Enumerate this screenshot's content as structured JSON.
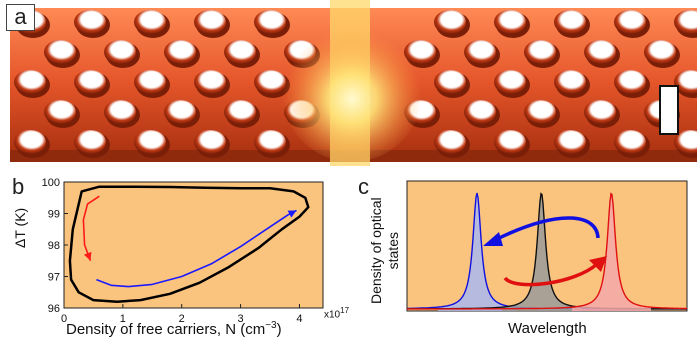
{
  "panel_a": {
    "label": "a",
    "colors": {
      "slab": "#e4552a",
      "slab_dark": "#9c2a10",
      "holes": "#ffffff",
      "glow": "#fff3a8"
    }
  },
  "panel_b": {
    "label": "b",
    "ylabel": "ΔT (K)",
    "xlabel": "Density of free carriers, N (cm",
    "xlabel_exp": "−3",
    "xlabel_close": ")",
    "x_multiplier": "x10",
    "x_multiplier_exp": "17",
    "background": "#fbc47e",
    "x_ticks": [
      "0",
      "1",
      "2",
      "3",
      "4"
    ],
    "y_ticks": [
      "96",
      "97",
      "98",
      "99",
      "100"
    ]
  },
  "panel_c": {
    "label": "c",
    "ylabel_line1": "Density of optical",
    "ylabel_line2": "states",
    "xlabel": "Wavelength",
    "background": "#fbc47e",
    "colors": {
      "blue": "#1010e0",
      "black": "#111111",
      "red": "#e01010"
    }
  },
  "chart_data": [
    {
      "type": "line",
      "title": "",
      "xlabel": "Density of free carriers, N (cm−3)",
      "ylabel": "ΔT (K)",
      "xlim": [
        0,
        4.4
      ],
      "ylim": [
        96,
        100
      ],
      "x_scale_note": "x10^17",
      "series": [
        {
          "color": "#000000",
          "x": [
            0.15,
            0.1,
            0.12,
            0.25,
            0.5,
            0.9,
            1.3,
            1.8,
            2.3,
            2.8,
            3.3,
            3.7,
            4.0,
            4.15,
            4.1,
            3.9,
            3.5,
            3.0,
            2.4,
            1.8,
            1.2,
            0.6,
            0.3,
            0.15
          ],
          "y": [
            98.5,
            97.5,
            96.9,
            96.5,
            96.25,
            96.2,
            96.25,
            96.45,
            96.8,
            97.3,
            97.9,
            98.5,
            98.9,
            99.2,
            99.5,
            99.7,
            99.8,
            99.8,
            99.82,
            99.84,
            99.85,
            99.85,
            99.7,
            98.5
          ]
        },
        {
          "color": "#1a1aff",
          "x": [
            0.55,
            0.8,
            1.1,
            1.5,
            2.0,
            2.5,
            3.0,
            3.4,
            3.8,
            3.95
          ],
          "y": [
            96.9,
            96.72,
            96.68,
            96.75,
            97.0,
            97.4,
            97.95,
            98.45,
            98.95,
            99.1
          ]
        },
        {
          "color": "#ff1a1a",
          "x": [
            0.6,
            0.4,
            0.33,
            0.35,
            0.45
          ],
          "y": [
            99.55,
            99.3,
            98.8,
            98.0,
            97.5
          ]
        }
      ]
    },
    {
      "type": "line",
      "title": "",
      "xlabel": "Wavelength",
      "ylabel": "Density of optical states",
      "series": [
        {
          "color": "#1010e0",
          "peak_position": 0.25
        },
        {
          "color": "#111111",
          "peak_position": 0.48
        },
        {
          "color": "#e01010",
          "peak_position": 0.73
        }
      ]
    }
  ]
}
